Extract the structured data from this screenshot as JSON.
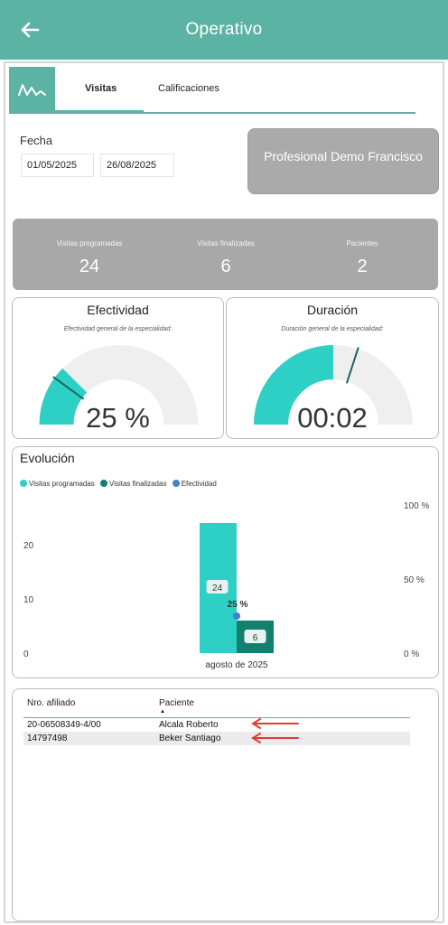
{
  "header": {
    "title": "Operativo"
  },
  "tabs": [
    {
      "label": "Visitas",
      "active": true
    },
    {
      "label": "Calificaciones",
      "active": false
    }
  ],
  "filters": {
    "fecha_label": "Fecha",
    "date_from": "01/05/2025",
    "date_to": "26/08/2025"
  },
  "professional": {
    "name": "Profesional Demo Francisco"
  },
  "kpis": [
    {
      "label": "Visitas programadas",
      "value": "24"
    },
    {
      "label": "Visitas finalizadas",
      "value": "6"
    },
    {
      "label": "Pacientes",
      "value": "2"
    }
  ],
  "gauges": {
    "efectividad": {
      "title": "Efectividad",
      "subtitle": "Efectividad general de la especialidad:",
      "value_text": "25 %",
      "fill_fraction": 0.25,
      "marker_fraction": 0.2
    },
    "duracion": {
      "title": "Duración",
      "subtitle": "Duración general de la especialidad:",
      "value_text": "00:02",
      "fill_fraction": 0.5,
      "marker_fraction": 0.6
    }
  },
  "evolution": {
    "title": "Evolución",
    "legend": [
      {
        "label": "Visitas programadas",
        "color": "#2ecfc4"
      },
      {
        "label": "Visitas finalizadas",
        "color": "#12806e"
      },
      {
        "label": "Efectividad",
        "color": "#3a86c8"
      }
    ]
  },
  "chart_data": {
    "type": "bar",
    "categories": [
      "agosto de 2025"
    ],
    "series": [
      {
        "name": "Visitas programadas",
        "values": [
          24
        ]
      },
      {
        "name": "Visitas finalizadas",
        "values": [
          6
        ]
      },
      {
        "name": "Efectividad",
        "values": [
          25
        ]
      }
    ],
    "data_labels": [
      "24",
      "6",
      "25 %"
    ],
    "y_left_ticks": [
      "0",
      "10",
      "20"
    ],
    "y_right_ticks": [
      "0 %",
      "50 %",
      "100 %"
    ],
    "ylim": [
      0,
      25
    ],
    "y2lim": [
      0,
      100
    ]
  },
  "table": {
    "columns": [
      "Nro. afiliado",
      "Paciente"
    ],
    "rows": [
      [
        "20-06508349-4/00",
        "Alcala Roberto"
      ],
      [
        "14797498",
        "Beker Santiago"
      ]
    ]
  },
  "colors": {
    "accent": "#5bb3a4",
    "teal_light": "#2ecfc4",
    "teal_dark": "#12806e",
    "arrow": "#e53935"
  }
}
